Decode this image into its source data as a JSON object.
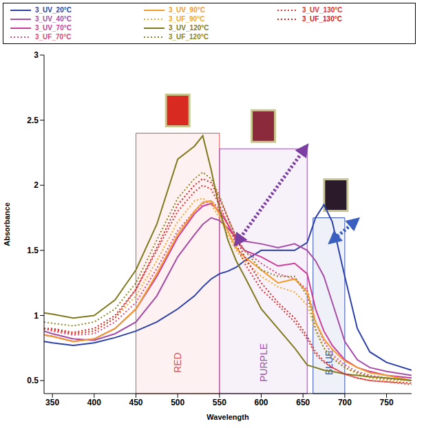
{
  "chart_data": {
    "type": "line",
    "x_label": "Wavelength",
    "y_label": "Absorbance",
    "x": [
      340,
      350,
      375,
      400,
      425,
      450,
      475,
      500,
      520,
      530,
      540,
      550,
      560,
      570,
      580,
      600,
      620,
      640,
      655,
      665,
      675,
      685,
      700,
      715,
      730,
      750,
      780
    ],
    "xlim": [
      340,
      780
    ],
    "xticks": [
      350,
      400,
      450,
      500,
      550,
      600,
      650,
      700,
      750
    ],
    "ylim": [
      0.4,
      3
    ],
    "yticks": [
      0.5,
      1,
      1.5,
      2,
      2.5,
      3
    ],
    "grid": false,
    "legend": "top",
    "series": [
      {
        "name": "3_UV_20°C",
        "color": "#2b3fa8",
        "line_style": "solid",
        "values": [
          0.8,
          0.79,
          0.77,
          0.79,
          0.83,
          0.88,
          0.95,
          1.05,
          1.15,
          1.22,
          1.28,
          1.32,
          1.34,
          1.37,
          1.42,
          1.5,
          1.5,
          1.5,
          1.56,
          1.75,
          1.85,
          1.72,
          1.3,
          0.9,
          0.72,
          0.64,
          0.58
        ]
      },
      {
        "name": "3_UV_40°C",
        "color": "#a64ca6",
        "line_style": "solid",
        "values": [
          0.88,
          0.86,
          0.82,
          0.81,
          0.86,
          0.95,
          1.15,
          1.45,
          1.62,
          1.7,
          1.75,
          1.73,
          1.67,
          1.6,
          1.57,
          1.55,
          1.52,
          1.55,
          1.5,
          1.42,
          1.3,
          1.1,
          0.8,
          0.66,
          0.6,
          0.57,
          0.54
        ]
      },
      {
        "name": "3_UV_70°C",
        "color": "#cc3d99",
        "line_style": "solid",
        "values": [
          0.85,
          0.84,
          0.8,
          0.82,
          0.9,
          1.05,
          1.3,
          1.6,
          1.78,
          1.84,
          1.86,
          1.8,
          1.7,
          1.58,
          1.5,
          1.45,
          1.38,
          1.4,
          1.32,
          1.05,
          0.88,
          0.77,
          0.66,
          0.6,
          0.57,
          0.54,
          0.52
        ]
      },
      {
        "name": "3_UF_70°C",
        "color": "#e0457a",
        "line_style": "dotted",
        "values": [
          0.9,
          0.88,
          0.85,
          0.86,
          0.95,
          1.1,
          1.36,
          1.65,
          1.8,
          1.86,
          1.88,
          1.82,
          1.7,
          1.58,
          1.5,
          1.4,
          1.32,
          1.28,
          1.2,
          0.95,
          0.8,
          0.7,
          0.62,
          0.57,
          0.54,
          0.52,
          0.5
        ]
      },
      {
        "name": "3_UV_90°C",
        "color": "#f39c2b",
        "line_style": "solid",
        "values": [
          0.85,
          0.84,
          0.8,
          0.82,
          0.9,
          1.05,
          1.32,
          1.62,
          1.8,
          1.87,
          1.88,
          1.78,
          1.65,
          1.52,
          1.45,
          1.35,
          1.25,
          1.28,
          1.18,
          0.95,
          0.82,
          0.74,
          0.65,
          0.6,
          0.56,
          0.54,
          0.5
        ]
      },
      {
        "name": "3_UF_90°C",
        "color": "#f5a623",
        "line_style": "dotted",
        "values": [
          0.9,
          0.89,
          0.86,
          0.88,
          0.98,
          1.15,
          1.42,
          1.72,
          1.88,
          1.9,
          1.85,
          1.75,
          1.62,
          1.5,
          1.42,
          1.3,
          1.22,
          1.18,
          1.08,
          0.88,
          0.75,
          0.68,
          0.6,
          0.55,
          0.52,
          0.5,
          0.48
        ]
      },
      {
        "name": "3_UV_120°C",
        "color": "#7f7a1e",
        "line_style": "solid",
        "values": [
          1.02,
          1.01,
          0.98,
          1.0,
          1.12,
          1.35,
          1.7,
          2.2,
          2.3,
          2.38,
          2.12,
          1.82,
          1.58,
          1.42,
          1.3,
          1.05,
          0.9,
          0.75,
          0.62,
          0.6,
          0.58,
          0.57,
          0.55,
          0.54,
          0.53,
          0.52,
          0.5
        ]
      },
      {
        "name": "3_UF_120°C",
        "color": "#8a8420",
        "line_style": "dotted",
        "values": [
          0.95,
          0.94,
          0.92,
          0.95,
          1.05,
          1.25,
          1.58,
          1.9,
          2.05,
          2.1,
          2.05,
          1.92,
          1.75,
          1.6,
          1.5,
          1.35,
          1.3,
          1.3,
          1.15,
          0.9,
          0.75,
          0.67,
          0.6,
          0.56,
          0.53,
          0.51,
          0.5
        ]
      },
      {
        "name": "3_UV_130°C",
        "color": "#e0302f",
        "line_style": "dotted",
        "values": [
          0.9,
          0.89,
          0.86,
          0.88,
          0.98,
          1.2,
          1.5,
          1.8,
          1.95,
          2.0,
          1.97,
          1.85,
          1.7,
          1.55,
          1.4,
          1.2,
          1.08,
          0.95,
          0.82,
          0.7,
          0.64,
          0.6,
          0.55,
          0.52,
          0.5,
          0.49,
          0.48
        ]
      },
      {
        "name": "3_UF_130°C",
        "color": "#d42020",
        "line_style": "dotted",
        "values": [
          0.9,
          0.9,
          0.87,
          0.9,
          1.0,
          1.2,
          1.52,
          1.85,
          2.0,
          2.05,
          2.02,
          1.9,
          1.75,
          1.6,
          1.45,
          1.25,
          1.1,
          0.98,
          0.84,
          0.72,
          0.65,
          0.6,
          0.55,
          0.52,
          0.5,
          0.49,
          0.47
        ]
      }
    ],
    "regions": [
      {
        "label": "RED",
        "x": [
          450,
          550
        ],
        "y": [
          0.4,
          2.4
        ],
        "color": "#e05050",
        "swatch": "#d82a20"
      },
      {
        "label": "PURPLE",
        "x": [
          550,
          655
        ],
        "y": [
          0.4,
          2.28
        ],
        "color": "#9b4fb0",
        "swatch": "#8a2a3a"
      },
      {
        "label": "BLUE",
        "x": [
          662,
          700
        ],
        "y": [
          0.4,
          1.75
        ],
        "color": "#3050b0",
        "swatch": "#2a1a2a"
      }
    ],
    "arrows": [
      {
        "from": [
          572,
          1.57
        ],
        "to": [
          652,
          2.28
        ],
        "color": "#7a3fa0"
      },
      {
        "from": [
          712,
          1.72
        ],
        "to": [
          686,
          1.58
        ],
        "color": "#3a5fc0"
      }
    ]
  }
}
